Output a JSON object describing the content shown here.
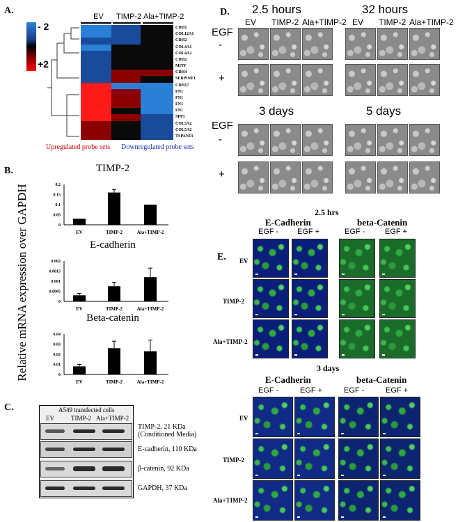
{
  "panels": {
    "a": "A.",
    "b": "B.",
    "c": "C.",
    "d": "D.",
    "e": "E."
  },
  "heatmap": {
    "columns": [
      "EV",
      "TIMP-2",
      "Ala+TIMP-2"
    ],
    "scale": [
      "- 2",
      "+2"
    ],
    "genes": [
      "CDH1",
      "COL12A1",
      "CDH2",
      "COL4A1",
      "COL4A2",
      "CDH2",
      "MITF",
      "CDH4",
      "SERPINE1",
      "CDH17",
      "FN1",
      "FN1",
      "FN1",
      "FN1",
      "SPP1",
      "COL5A2",
      "COL5A2",
      "TSPAN13"
    ],
    "up_caption": "Upregulated probe sets",
    "down_caption": "Downregulated probe sets"
  },
  "mrna": {
    "ylabel": "Relative mRNA expression over GAPDH",
    "charts": [
      {
        "title": "TIMP-2",
        "categories": [
          "EV",
          "TIMP-2",
          "Ala+TIMP-2"
        ],
        "values": [
          0.03,
          0.16,
          0.1
        ],
        "errors": [
          0,
          0.015,
          0
        ],
        "ticks": [
          "0.2",
          "0.15",
          "0.1",
          "0.05",
          "0"
        ],
        "ymax": 0.2
      },
      {
        "title": "E-cadherin",
        "categories": [
          "EV",
          "TIMP-2",
          "Ala+TIMP-2"
        ],
        "values": [
          0.0003,
          0.00075,
          0.0012
        ],
        "errors": [
          0.0001,
          0.0002,
          0.00045
        ],
        "ticks": [
          "0.002",
          "0.0015",
          "0.001",
          "0.0005",
          "0"
        ],
        "ymax": 0.002
      },
      {
        "title": "Beta-catenin",
        "categories": [
          "EV",
          "TIMP-2",
          "Ala+TIMP-2"
        ],
        "values": [
          0.008,
          0.026,
          0.023
        ],
        "errors": [
          0.002,
          0.007,
          0.011
        ],
        "ticks": [
          "0.04",
          "0.03",
          "0.02",
          "0.01",
          "0"
        ],
        "ymax": 0.04
      }
    ]
  },
  "western": {
    "header": "A549 transfected cells",
    "lanes": [
      "EV",
      "TIMP-2",
      "Ala+TIMP-2"
    ],
    "bands": [
      "TIMP-2, 21 KDa (Conditioned Media)",
      "E-cadherin, 110 KDa",
      "β-catenin, 92 KDa",
      "GAPDH, 37 KDa"
    ]
  },
  "phase": {
    "times": [
      "2.5 hours",
      "32 hours",
      "3 days",
      "5 days"
    ],
    "columns": [
      "EV",
      "TIMP-2",
      "Ala+TIMP-2"
    ],
    "egf": "EGF",
    "minus": "-",
    "plus": "+"
  },
  "if": {
    "time1": "2.5 hrs",
    "time2": "3 days",
    "stains": [
      "E-Cadherin",
      "beta-Catenin"
    ],
    "egf_cols": [
      "EGF -",
      "EGF +"
    ],
    "rows": [
      "EV",
      "TIMP-2",
      "Ala+TIMP-2"
    ]
  }
}
